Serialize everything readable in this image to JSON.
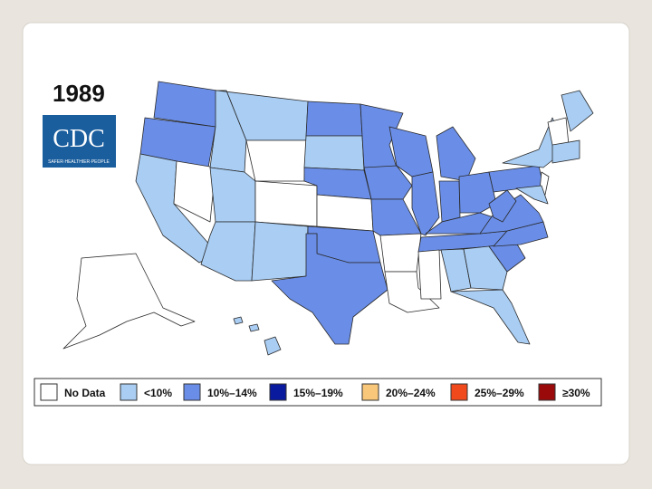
{
  "title": "1989",
  "logo": {
    "text": "CDC",
    "tagline": "SAFER·HEALTHIER·PEOPLE"
  },
  "legend": [
    {
      "label": "No Data",
      "color": "#ffffff"
    },
    {
      "label": "<10%",
      "color": "#a9cdf3"
    },
    {
      "label": "10%–14%",
      "color": "#6a8ee8"
    },
    {
      "label": "15%–19%",
      "color": "#0a1a9e"
    },
    {
      "label": "20%–24%",
      "color": "#f9c77a"
    },
    {
      "label": "25%–29%",
      "color": "#f04a1c"
    },
    {
      "label": "≥30%",
      "color": "#9b0a0a"
    }
  ]
}
